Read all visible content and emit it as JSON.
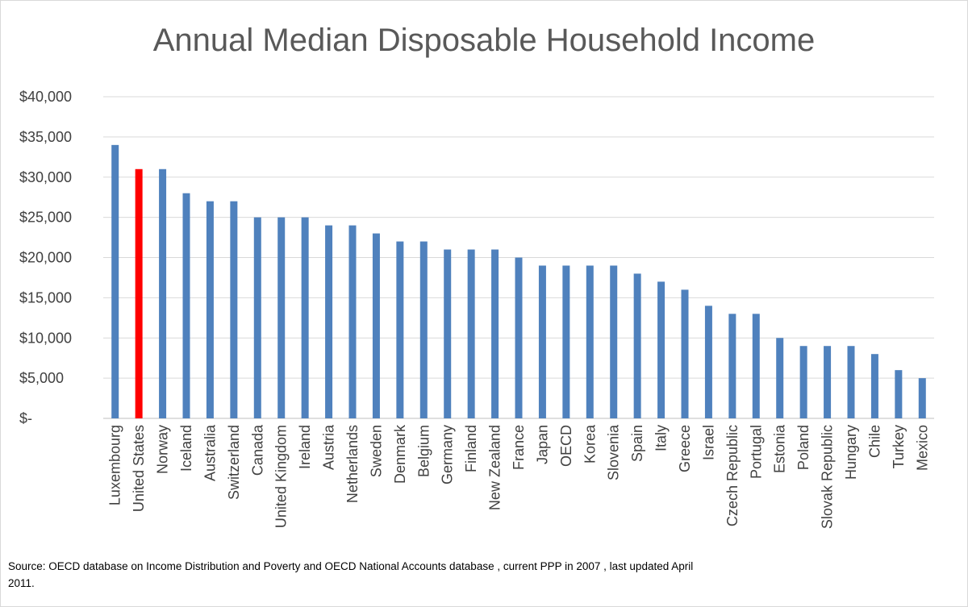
{
  "chart_data": {
    "type": "bar",
    "title": "Annual Median Disposable Household Income",
    "xlabel": "",
    "ylabel": "",
    "ylim": [
      0,
      40000
    ],
    "yticks": [
      0,
      5000,
      10000,
      15000,
      20000,
      25000,
      30000,
      35000,
      40000
    ],
    "ytick_labels": [
      "$-",
      "$5,000",
      "$10,000",
      "$15,000",
      "$20,000",
      "$25,000",
      "$30,000",
      "$35,000",
      "$40,000"
    ],
    "grid": true,
    "legend": "none",
    "categories": [
      "Luxembourg",
      "United States",
      "Norway",
      "Iceland",
      "Australia",
      "Switzerland",
      "Canada",
      "United Kingdom",
      "Ireland",
      "Austria",
      "Netherlands",
      "Sweden",
      "Denmark",
      "Belgium",
      "Germany",
      "Finland",
      "New Zealand",
      "France",
      "Japan",
      "OECD",
      "Korea",
      "Slovenia",
      "Spain",
      "Italy",
      "Greece",
      "Israel",
      "Czech Republic",
      "Portugal",
      "Estonia",
      "Poland",
      "Slovak Republic",
      "Hungary",
      "Chile",
      "Turkey",
      "Mexico"
    ],
    "values": [
      34000,
      31000,
      31000,
      28000,
      27000,
      27000,
      25000,
      25000,
      25000,
      24000,
      24000,
      23000,
      22000,
      22000,
      21000,
      21000,
      21000,
      20000,
      19000,
      19000,
      19000,
      19000,
      18000,
      17000,
      16000,
      14000,
      13000,
      13000,
      10000,
      9000,
      9000,
      9000,
      8000,
      6000,
      5000
    ],
    "bar_color": "#4f81bd",
    "highlight": {
      "category": "United States",
      "color": "#ff0000"
    },
    "grid_color": "#d9d9d9"
  },
  "source_note": "Source: OECD database on Income Distribution and Poverty and OECD National Accounts database , current PPP in 2007 , last updated April 2011."
}
